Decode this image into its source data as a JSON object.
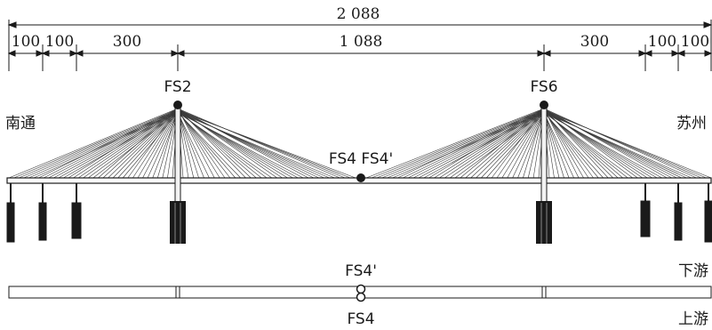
{
  "dimensions": {
    "total": "2 088",
    "main_span": "1 088",
    "side_left": [
      "100",
      "100",
      "300"
    ],
    "side_right": [
      "300",
      "100",
      "100"
    ]
  },
  "towers": {
    "left": "FS2",
    "right": "FS6"
  },
  "midspan_label": "FS4 FS4'",
  "ends": {
    "left_city": "南通",
    "right_city": "苏州"
  },
  "plan_view": {
    "label_top": "FS4'",
    "label_bottom": "FS4",
    "right_top": "下游",
    "right_bottom": "上游"
  },
  "colors": {
    "ink": "#1a1a1a",
    "cable": "#3a3a3a"
  }
}
